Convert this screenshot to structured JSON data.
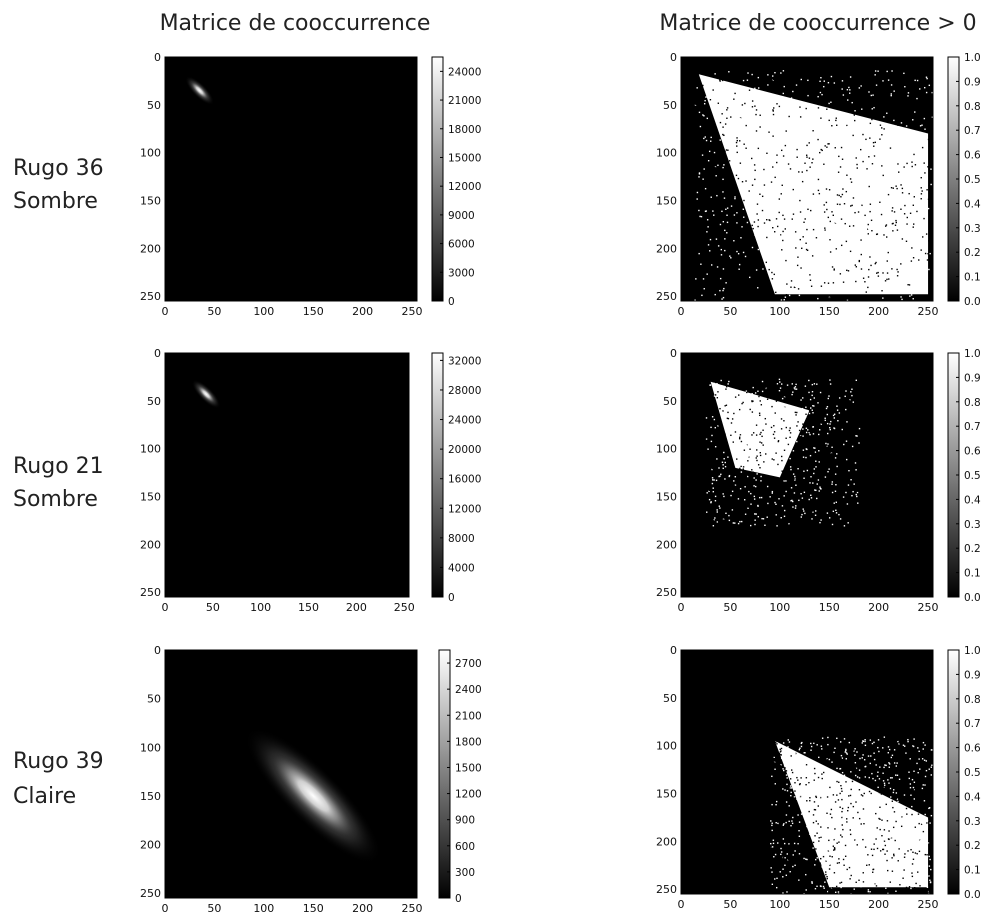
{
  "column_titles": [
    "Matrice de cooccurrence",
    "Matrice de cooccurrence > 0"
  ],
  "row_labels": [
    [
      "Rugo 36",
      "Sombre"
    ],
    [
      "Rugo 21",
      "Sombre"
    ],
    [
      "Rugo 39",
      "Claire"
    ]
  ],
  "colors": {
    "background": "#000000",
    "foreground": "#ffffff"
  },
  "chart_data": [
    {
      "type": "heatmap",
      "row": 0,
      "col": 0,
      "xlim": [
        0,
        255
      ],
      "ylim": [
        255,
        0
      ],
      "xticks": [
        0,
        50,
        100,
        150,
        200,
        250
      ],
      "yticks": [
        0,
        50,
        100,
        150,
        200,
        250
      ],
      "colorbar": {
        "min": 0,
        "max": 25500,
        "ticks": [
          0,
          3000,
          6000,
          9000,
          12000,
          15000,
          18000,
          21000,
          24000
        ]
      },
      "hotspot": {
        "center": [
          35,
          35
        ],
        "peak": 25500
      }
    },
    {
      "type": "heatmap",
      "row": 0,
      "col": 1,
      "xlim": [
        0,
        255
      ],
      "ylim": [
        255,
        0
      ],
      "xticks": [
        0,
        50,
        100,
        150,
        200,
        250
      ],
      "yticks": [
        0,
        50,
        100,
        150,
        200,
        250
      ],
      "colorbar": {
        "min": 0,
        "max": 1,
        "ticks": [
          "0.0",
          "0.1",
          "0.2",
          "0.3",
          "0.4",
          "0.5",
          "0.6",
          "0.7",
          "0.8",
          "0.9",
          "1.0"
        ]
      },
      "binary_region": [
        [
          18,
          18
        ],
        [
          250,
          80
        ],
        [
          250,
          248
        ],
        [
          95,
          248
        ]
      ]
    },
    {
      "type": "heatmap",
      "row": 1,
      "col": 0,
      "xlim": [
        0,
        255
      ],
      "ylim": [
        255,
        0
      ],
      "xticks": [
        0,
        50,
        100,
        150,
        200,
        250
      ],
      "yticks": [
        0,
        50,
        100,
        150,
        200,
        250
      ],
      "colorbar": {
        "min": 0,
        "max": 33000,
        "ticks": [
          0,
          4000,
          8000,
          12000,
          16000,
          20000,
          24000,
          28000,
          32000
        ]
      },
      "hotspot": {
        "center": [
          43,
          43
        ],
        "peak": 33000
      }
    },
    {
      "type": "heatmap",
      "row": 1,
      "col": 1,
      "xlim": [
        0,
        255
      ],
      "ylim": [
        255,
        0
      ],
      "xticks": [
        0,
        50,
        100,
        150,
        200,
        250
      ],
      "yticks": [
        0,
        50,
        100,
        150,
        200,
        250
      ],
      "colorbar": {
        "min": 0,
        "max": 1,
        "ticks": [
          "0.0",
          "0.1",
          "0.2",
          "0.3",
          "0.4",
          "0.5",
          "0.6",
          "0.7",
          "0.8",
          "0.9",
          "1.0"
        ]
      },
      "binary_region": [
        [
          30,
          30
        ],
        [
          130,
          60
        ],
        [
          100,
          130
        ],
        [
          55,
          120
        ]
      ]
    },
    {
      "type": "heatmap",
      "row": 2,
      "col": 0,
      "xlim": [
        0,
        255
      ],
      "ylim": [
        255,
        0
      ],
      "xticks": [
        0,
        50,
        100,
        150,
        200,
        250
      ],
      "yticks": [
        0,
        50,
        100,
        150,
        200,
        250
      ],
      "colorbar": {
        "min": 0,
        "max": 2850,
        "ticks": [
          0,
          300,
          600,
          900,
          1200,
          1500,
          1800,
          2100,
          2400,
          2700
        ]
      },
      "hotspot": {
        "center": [
          150,
          150
        ],
        "peak": 2850
      }
    },
    {
      "type": "heatmap",
      "row": 2,
      "col": 1,
      "xlim": [
        0,
        255
      ],
      "ylim": [
        255,
        0
      ],
      "xticks": [
        0,
        50,
        100,
        150,
        200,
        250
      ],
      "yticks": [
        0,
        50,
        100,
        150,
        200,
        250
      ],
      "colorbar": {
        "min": 0,
        "max": 1,
        "ticks": [
          "0.0",
          "0.1",
          "0.2",
          "0.3",
          "0.4",
          "0.5",
          "0.6",
          "0.7",
          "0.8",
          "0.9",
          "1.0"
        ]
      },
      "binary_region": [
        [
          95,
          95
        ],
        [
          250,
          175
        ],
        [
          250,
          248
        ],
        [
          150,
          248
        ]
      ]
    }
  ]
}
